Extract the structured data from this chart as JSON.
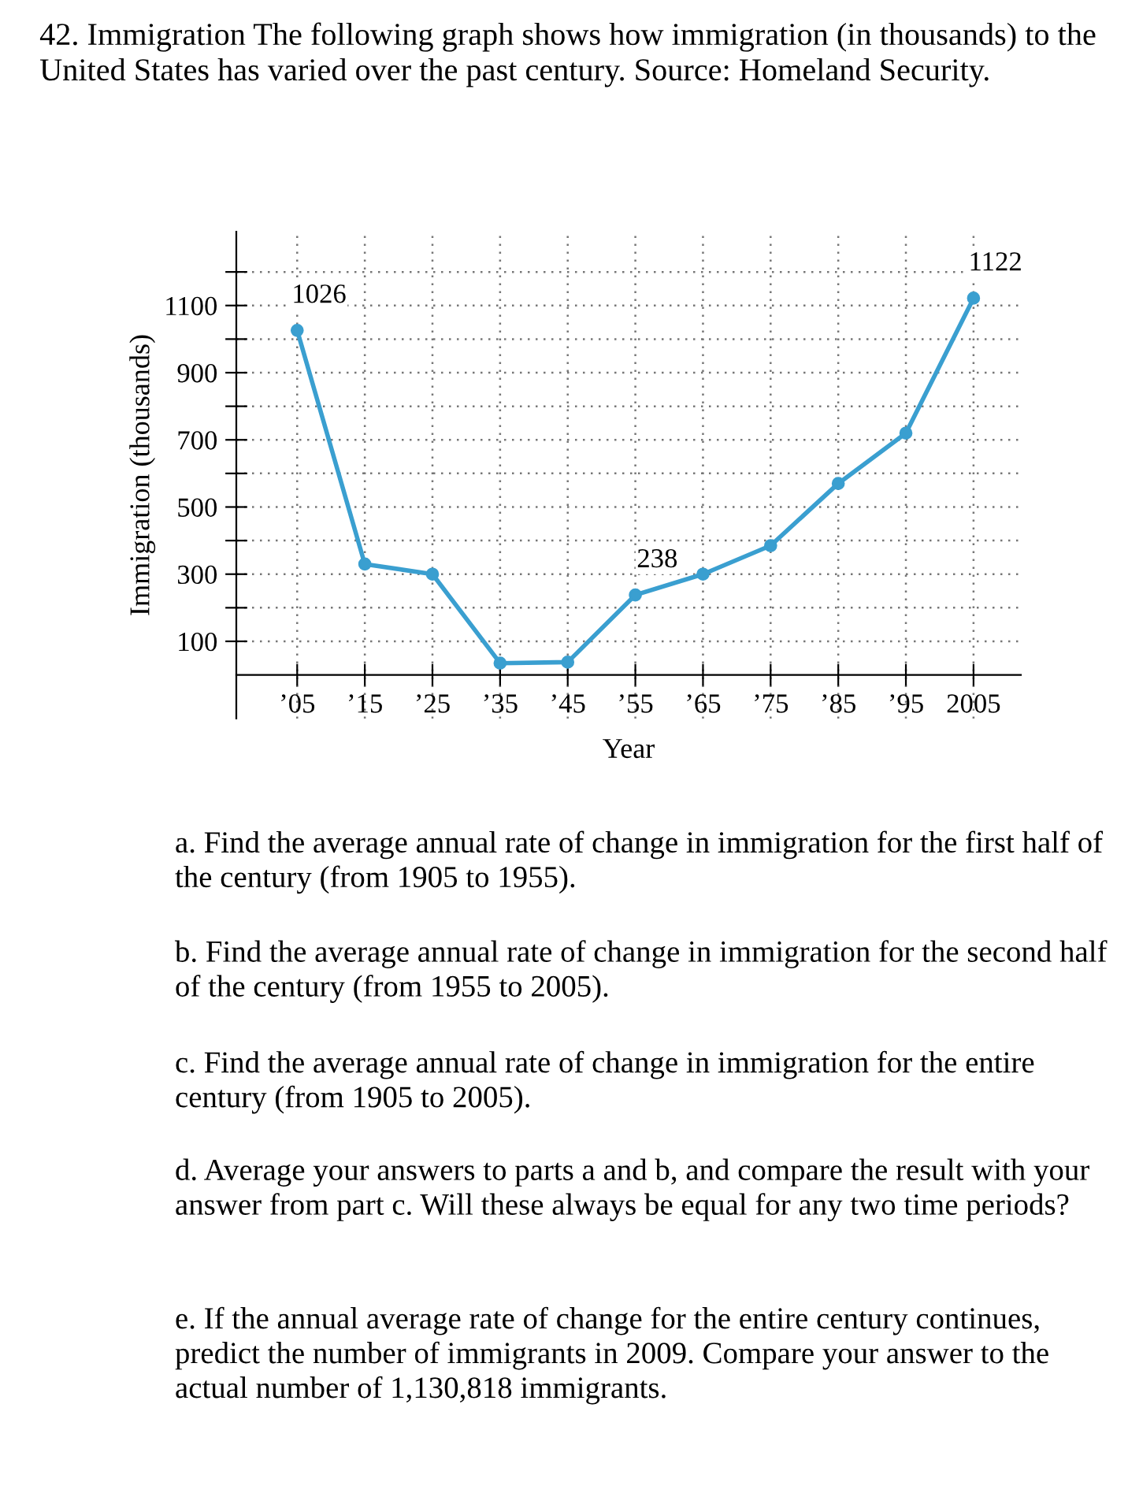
{
  "chart_data": {
    "type": "line",
    "title": "42. Immigration The following graph shows how immigration (in thousands) to the United States has varied over the past century. Source: Homeland Security.",
    "xlabel": "Year",
    "ylabel": "Immigration (thousands)",
    "x": [
      1905,
      1915,
      1925,
      1935,
      1945,
      1955,
      1965,
      1975,
      1985,
      1995,
      2005
    ],
    "series": [
      {
        "color": "#3a9fd0",
        "values": [
          1026,
          330,
          300,
          35,
          38,
          238,
          300,
          385,
          570,
          720,
          1122
        ]
      }
    ],
    "xlim": [
      1896,
      2012
    ],
    "ylim": [
      -130,
      1320
    ],
    "xticks": [
      {
        "value": 1905,
        "label": "’05"
      },
      {
        "value": 1915,
        "label": "’15"
      },
      {
        "value": 1925,
        "label": "’25"
      },
      {
        "value": 1935,
        "label": "’35"
      },
      {
        "value": 1945,
        "label": "’45"
      },
      {
        "value": 1955,
        "label": "’55"
      },
      {
        "value": 1965,
        "label": "’65"
      },
      {
        "value": 1975,
        "label": "’75"
      },
      {
        "value": 1985,
        "label": "’85"
      },
      {
        "value": 1995,
        "label": "’95"
      },
      2005
    ],
    "yticks": [
      100,
      {
        "value": 200,
        "label": null
      },
      300,
      {
        "value": 400,
        "label": null
      },
      500,
      {
        "value": 600,
        "label": null
      },
      700,
      {
        "value": 800,
        "label": null
      },
      900,
      {
        "value": 1000,
        "label": null
      },
      1100,
      {
        "value": 1200,
        "label": null
      }
    ],
    "grid": true,
    "marker": "circle",
    "line_style": "solid",
    "annotations": [
      {
        "text": "1026",
        "x": 1905,
        "y": 1026
      },
      {
        "text": "238",
        "x": 1955,
        "y": 238
      },
      {
        "text": "1122",
        "x": 2005,
        "y": 1122
      },
      "a. Find the average annual rate of change in immigration for the first half of the century (from 1905 to 1955).",
      "b. Find the average annual rate of change in immigration for the second half of the century (from 1955 to 2005).",
      "c. Find the average annual rate of change in immigration for the entire century (from 1905 to 2005).",
      "d. Average your answers to parts a and b, and compare the result with your answer from part c. Will these always be equal for any two time periods?",
      "e. If the annual average rate of change for the entire century continues, predict the number of immigrants in 2009. Compare your answer to the actual number of 1,130,818 immigrants."
    ]
  }
}
